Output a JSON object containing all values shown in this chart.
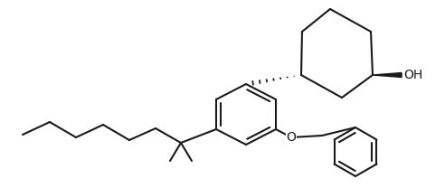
{
  "background": "#ffffff",
  "line_color": "#1a1a1a",
  "line_width": 1.5,
  "font_size": 10,
  "oh_label": "OH",
  "fig_width": 4.92,
  "fig_height": 2.08
}
